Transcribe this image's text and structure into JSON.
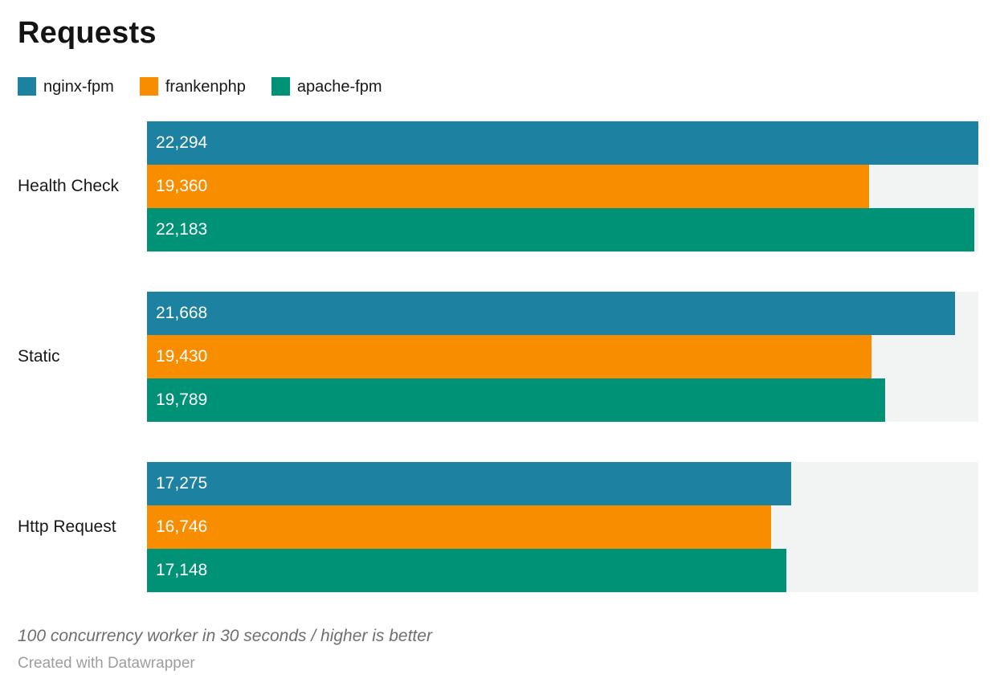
{
  "chart_data": {
    "type": "bar",
    "orientation": "horizontal",
    "title": "Requests",
    "categories": [
      "Health Check",
      "Static",
      "Http Request"
    ],
    "series": [
      {
        "name": "nginx-fpm",
        "color": "#1d81a2",
        "values": [
          22294,
          21668,
          17275
        ]
      },
      {
        "name": "frankenphp",
        "color": "#f98d00",
        "values": [
          19360,
          19430,
          16746
        ]
      },
      {
        "name": "apache-fpm",
        "color": "#009276",
        "values": [
          22183,
          19789,
          17148
        ]
      }
    ],
    "value_labels": [
      [
        "22,294",
        "21,668",
        "17,275"
      ],
      [
        "19,360",
        "19,430",
        "16,746"
      ],
      [
        "22,183",
        "19,789",
        "17,148"
      ]
    ],
    "xlim": [
      0,
      22294
    ],
    "grid": false,
    "legend_position": "top-left",
    "bar_track_color": "#f2f3f3",
    "note": "100 concurrency worker in 30 seconds / higher is better",
    "credit": "Created with Datawrapper"
  }
}
